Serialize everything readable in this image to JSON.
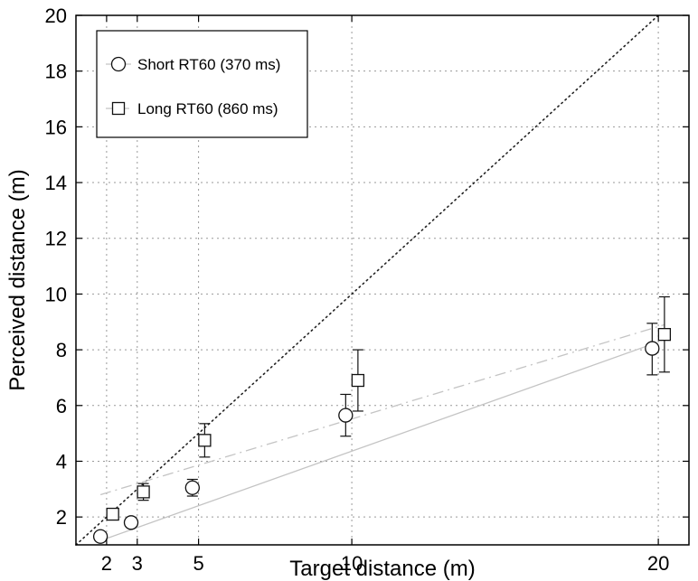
{
  "chart_data": {
    "type": "scatter",
    "xlabel": "Target distance (m)",
    "ylabel": "Perceived distance (m)",
    "xlim": [
      1,
      21
    ],
    "ylim": [
      1,
      20
    ],
    "xticks": [
      2,
      3,
      5,
      10,
      20
    ],
    "yticks": [
      2,
      4,
      6,
      8,
      10,
      12,
      14,
      16,
      18,
      20
    ],
    "grid": true,
    "legend_position": "top-left",
    "series": [
      {
        "name": "Short RT60 (370 ms)",
        "marker": "circle",
        "x": [
          1.8,
          2.8,
          4.8,
          9.8,
          19.8
        ],
        "y": [
          1.3,
          1.8,
          3.05,
          5.65,
          8.05
        ],
        "err_low": [
          0.1,
          0.1,
          0.3,
          0.75,
          0.95
        ],
        "err_high": [
          0.1,
          0.1,
          0.3,
          0.75,
          0.9
        ],
        "fit": {
          "x": [
            1.8,
            19.8
          ],
          "y": [
            1.15,
            8.2
          ],
          "style": "solid"
        }
      },
      {
        "name": "Long RT60 (860 ms)",
        "marker": "square",
        "x": [
          2.2,
          3.2,
          5.2,
          10.2,
          20.2
        ],
        "y": [
          2.1,
          2.9,
          4.75,
          6.9,
          8.55
        ],
        "err_low": [
          0.15,
          0.3,
          0.6,
          1.1,
          1.35
        ],
        "err_high": [
          0.15,
          0.3,
          0.6,
          1.1,
          1.35
        ],
        "fit": {
          "x": [
            1.8,
            20.2
          ],
          "y": [
            2.8,
            8.9
          ],
          "style": "dash-dot"
        }
      }
    ],
    "reference_line": {
      "x": [
        1,
        20
      ],
      "y": [
        1,
        20
      ],
      "style": "dotted"
    }
  }
}
